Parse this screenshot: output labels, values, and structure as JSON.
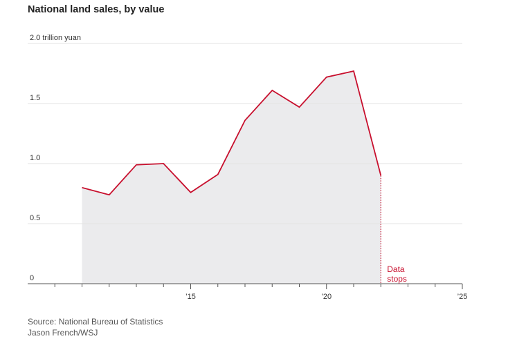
{
  "chart_data": {
    "type": "area",
    "title": "National land sales, by value",
    "y_unit_label": "2.0 trillion yuan",
    "x": [
      2011,
      2012,
      2013,
      2014,
      2015,
      2016,
      2017,
      2018,
      2019,
      2020,
      2021,
      2022
    ],
    "values": [
      0.8,
      0.74,
      0.99,
      1.0,
      0.76,
      0.91,
      1.36,
      1.61,
      1.47,
      1.72,
      1.77,
      0.9
    ],
    "xlim": [
      2009,
      2025
    ],
    "ylim": [
      0,
      2.0
    ],
    "y_ticks": [
      0,
      0.5,
      1.0,
      1.5,
      2.0
    ],
    "y_tick_labels": [
      "0",
      "0.5",
      "1.0",
      "1.5",
      "2.0 trillion yuan"
    ],
    "x_ticks": [
      2015,
      2020,
      2025
    ],
    "x_tick_labels": [
      "’15",
      "’20",
      "’25"
    ],
    "annotation": {
      "lines": [
        "Data",
        "stops"
      ],
      "x": 2022
    },
    "grid": true,
    "colors": {
      "line": "#c8102e",
      "fill": "#ebebed",
      "grid": "#e3e3e3",
      "axis": "#555555",
      "text": "#333333"
    }
  },
  "footer": {
    "source": "Source: National Bureau of Statistics",
    "credit": "Jason French/WSJ"
  }
}
